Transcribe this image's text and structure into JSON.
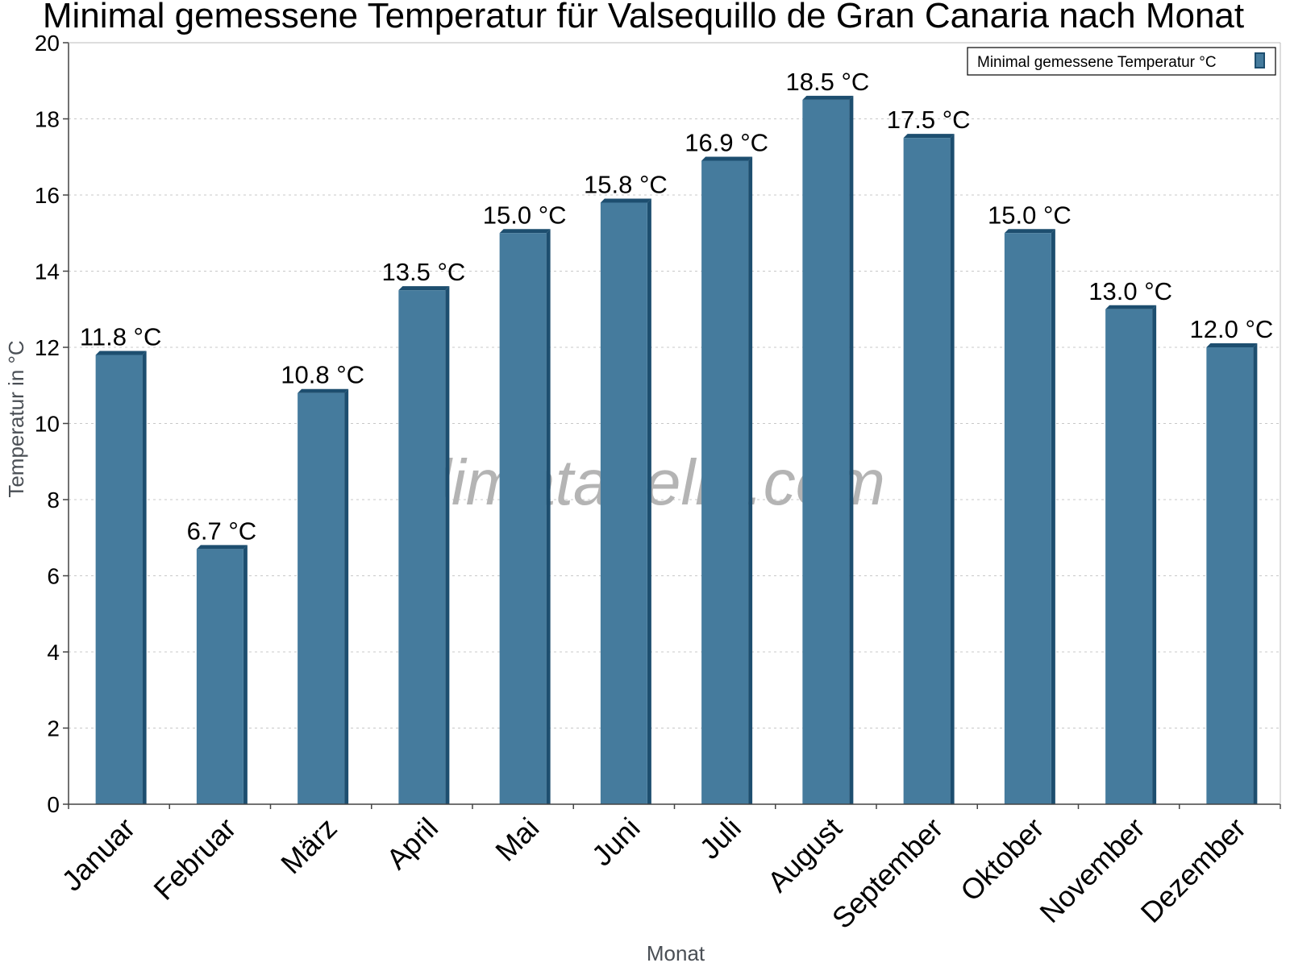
{
  "chart_data": {
    "type": "bar",
    "title": "Minimal gemessene Temperatur für Valsequillo de Gran Canaria nach Monat",
    "xlabel": "Monat",
    "ylabel": "Temperatur in °C",
    "ylim": [
      0,
      20
    ],
    "yticks": [
      0,
      2,
      4,
      6,
      8,
      10,
      12,
      14,
      16,
      18,
      20
    ],
    "grid": true,
    "legend_position": "top-right",
    "categories": [
      "Januar",
      "Februar",
      "März",
      "April",
      "Mai",
      "Juni",
      "Juli",
      "August",
      "September",
      "Oktober",
      "November",
      "Dezember"
    ],
    "series": [
      {
        "name": "Minimal gemessene Temperatur °C",
        "values": [
          11.8,
          6.7,
          10.8,
          13.5,
          15.0,
          15.8,
          16.9,
          18.5,
          17.5,
          15.0,
          13.0,
          12.0
        ],
        "labels": [
          "11.8 °C",
          "6.7 °C",
          "10.8 °C",
          "13.5 °C",
          "15.0 °C",
          "15.8 °C",
          "16.9 °C",
          "18.5 °C",
          "17.5 °C",
          "15.0 °C",
          "13.0 °C",
          "12.0 °C"
        ],
        "color": "#457b9d",
        "shade_color": "#1d4e6f"
      }
    ],
    "watermark": "klimatabelle.com"
  }
}
